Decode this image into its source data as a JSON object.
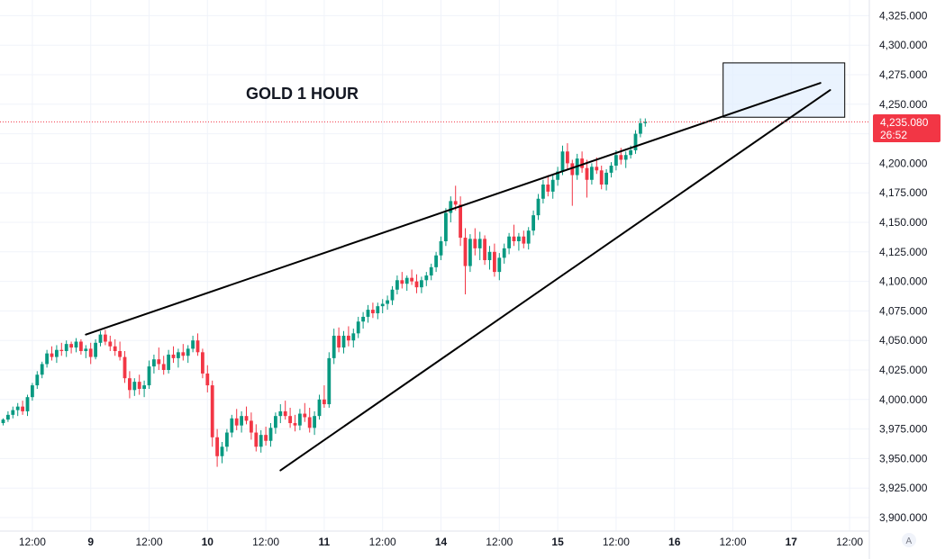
{
  "chart_data": {
    "type": "candlestick",
    "title": "GOLD 1 HOUR",
    "ylim": [
      3890,
      4335
    ],
    "y_ticks": [
      3900,
      3925,
      3950,
      3975,
      4000,
      4025,
      4050,
      4075,
      4100,
      4125,
      4150,
      4175,
      4200,
      4225,
      4250,
      4275,
      4300,
      4325
    ],
    "y_tick_labels": [
      "3,900.000",
      "3,925.000",
      "3,950.000",
      "3,975.000",
      "4,000.000",
      "4,025.000",
      "4,050.000",
      "4,075.000",
      "4,100.000",
      "4,125.000",
      "4,150.000",
      "4,175.000",
      "4,200.000",
      "4,225.000",
      "4,250.000",
      "4,275.000",
      "4,300.000",
      "4,325.000"
    ],
    "x_ticks": [
      {
        "t": 6,
        "label": "12:00",
        "day": false
      },
      {
        "t": 18,
        "label": "9",
        "day": true
      },
      {
        "t": 30,
        "label": "12:00",
        "day": false
      },
      {
        "t": 42,
        "label": "10",
        "day": true
      },
      {
        "t": 54,
        "label": "12:00",
        "day": false
      },
      {
        "t": 66,
        "label": "11",
        "day": true
      },
      {
        "t": 78,
        "label": "12:00",
        "day": false
      },
      {
        "t": 90,
        "label": "14",
        "day": true
      },
      {
        "t": 102,
        "label": "12:00",
        "day": false
      },
      {
        "t": 114,
        "label": "15",
        "day": true
      },
      {
        "t": 126,
        "label": "12:00",
        "day": false
      },
      {
        "t": 138,
        "label": "16",
        "day": true
      },
      {
        "t": 150,
        "label": "12:00",
        "day": false
      },
      {
        "t": 162,
        "label": "17",
        "day": true
      },
      {
        "t": 174,
        "label": "12:00",
        "day": false
      }
    ],
    "last_price": 4235.08,
    "last_price_label": "4,235.080",
    "countdown": "26:52",
    "colors": {
      "up": "#089981",
      "down": "#f23645",
      "grid": "#f0f3fa",
      "trendline": "#000000",
      "box_fill": "#e3effd",
      "box_stroke": "#000000",
      "price_tag": "#f23645"
    },
    "trendlines": [
      {
        "name": "upper-wedge-line",
        "t1": 17,
        "p1": 4055,
        "t2": 168,
        "p2": 4268
      },
      {
        "name": "lower-wedge-line",
        "t1": 57,
        "p1": 3940,
        "t2": 170,
        "p2": 4262
      }
    ],
    "target_box": {
      "t1": 148,
      "p1": 4285,
      "t2": 173,
      "p2": 4239
    },
    "candles": [
      [
        3980,
        3984,
        3978,
        3983
      ],
      [
        3983,
        3990,
        3981,
        3987
      ],
      [
        3987,
        3994,
        3984,
        3991
      ],
      [
        3991,
        3997,
        3986,
        3994
      ],
      [
        3994,
        3999,
        3987,
        3990
      ],
      [
        3990,
        4004,
        3986,
        4002
      ],
      [
        4002,
        4014,
        3999,
        4012
      ],
      [
        4012,
        4024,
        4009,
        4021
      ],
      [
        4021,
        4032,
        4018,
        4030
      ],
      [
        4030,
        4042,
        4027,
        4039
      ],
      [
        4039,
        4045,
        4033,
        4036
      ],
      [
        4036,
        4046,
        4031,
        4042
      ],
      [
        4042,
        4048,
        4037,
        4041
      ],
      [
        4041,
        4050,
        4036,
        4047
      ],
      [
        4047,
        4049,
        4039,
        4044
      ],
      [
        4044,
        4052,
        4040,
        4049
      ],
      [
        4049,
        4051,
        4038,
        4041
      ],
      [
        4041,
        4046,
        4035,
        4043
      ],
      [
        4043,
        4048,
        4030,
        4036
      ],
      [
        4036,
        4051,
        4034,
        4048
      ],
      [
        4048,
        4058,
        4045,
        4055
      ],
      [
        4055,
        4059,
        4046,
        4049
      ],
      [
        4049,
        4054,
        4041,
        4045
      ],
      [
        4045,
        4051,
        4037,
        4041
      ],
      [
        4041,
        4049,
        4033,
        4036
      ],
      [
        4036,
        4041,
        4014,
        4018
      ],
      [
        4018,
        4024,
        4001,
        4008
      ],
      [
        4008,
        4018,
        4003,
        4015
      ],
      [
        4015,
        4021,
        4004,
        4009
      ],
      [
        4009,
        4016,
        4002,
        4012
      ],
      [
        4012,
        4033,
        4009,
        4028
      ],
      [
        4028,
        4038,
        4022,
        4034
      ],
      [
        4034,
        4044,
        4025,
        4030
      ],
      [
        4030,
        4037,
        4021,
        4025
      ],
      [
        4025,
        4042,
        4022,
        4038
      ],
      [
        4038,
        4045,
        4031,
        4035
      ],
      [
        4035,
        4043,
        4027,
        4040
      ],
      [
        4040,
        4047,
        4033,
        4037
      ],
      [
        4037,
        4046,
        4031,
        4043
      ],
      [
        4043,
        4054,
        4040,
        4050
      ],
      [
        4050,
        4056,
        4037,
        4040
      ],
      [
        4040,
        4043,
        4018,
        4022
      ],
      [
        4022,
        4029,
        4006,
        4012
      ],
      [
        4012,
        4016,
        3960,
        3968
      ],
      [
        3968,
        3975,
        3943,
        3952
      ],
      [
        3952,
        3964,
        3946,
        3960
      ],
      [
        3960,
        3975,
        3956,
        3972
      ],
      [
        3972,
        3987,
        3968,
        3984
      ],
      [
        3984,
        3992,
        3974,
        3978
      ],
      [
        3978,
        3990,
        3972,
        3986
      ],
      [
        3986,
        3994,
        3979,
        3982
      ],
      [
        3982,
        3989,
        3966,
        3972
      ],
      [
        3972,
        3979,
        3956,
        3960
      ],
      [
        3960,
        3974,
        3955,
        3970
      ],
      [
        3970,
        3977,
        3961,
        3965
      ],
      [
        3965,
        3980,
        3960,
        3976
      ],
      [
        3976,
        3989,
        3971,
        3986
      ],
      [
        3986,
        3996,
        3980,
        3990
      ],
      [
        3990,
        3999,
        3983,
        3986
      ],
      [
        3986,
        3993,
        3976,
        3980
      ],
      [
        3980,
        3987,
        3973,
        3978
      ],
      [
        3978,
        3992,
        3974,
        3988
      ],
      [
        3988,
        3997,
        3981,
        3985
      ],
      [
        3985,
        3993,
        3972,
        3976
      ],
      [
        3976,
        3990,
        3970,
        3986
      ],
      [
        3986,
        4004,
        3983,
        4000
      ],
      [
        4000,
        4012,
        3993,
        3996
      ],
      [
        3996,
        4040,
        3993,
        4035
      ],
      [
        4035,
        4060,
        4030,
        4054
      ],
      [
        4054,
        4061,
        4040,
        4044
      ],
      [
        4044,
        4058,
        4039,
        4054
      ],
      [
        4054,
        4062,
        4045,
        4050
      ],
      [
        4050,
        4060,
        4044,
        4056
      ],
      [
        4056,
        4070,
        4052,
        4066
      ],
      [
        4066,
        4074,
        4060,
        4070
      ],
      [
        4070,
        4080,
        4065,
        4076
      ],
      [
        4076,
        4082,
        4069,
        4073
      ],
      [
        4073,
        4082,
        4068,
        4079
      ],
      [
        4079,
        4085,
        4073,
        4081
      ],
      [
        4081,
        4088,
        4076,
        4084
      ],
      [
        4084,
        4096,
        4080,
        4093
      ],
      [
        4093,
        4105,
        4089,
        4101
      ],
      [
        4101,
        4108,
        4094,
        4098
      ],
      [
        4098,
        4105,
        4092,
        4103
      ],
      [
        4103,
        4110,
        4097,
        4100
      ],
      [
        4100,
        4106,
        4090,
        4095
      ],
      [
        4095,
        4104,
        4090,
        4101
      ],
      [
        4101,
        4108,
        4096,
        4105
      ],
      [
        4105,
        4115,
        4101,
        4112
      ],
      [
        4112,
        4125,
        4108,
        4122
      ],
      [
        4122,
        4138,
        4118,
        4134
      ],
      [
        4134,
        4162,
        4130,
        4158
      ],
      [
        4158,
        4172,
        4150,
        4168
      ],
      [
        4168,
        4181,
        4160,
        4165
      ],
      [
        4165,
        4172,
        4130,
        4137
      ],
      [
        4137,
        4145,
        4089,
        4113
      ],
      [
        4113,
        4140,
        4108,
        4136
      ],
      [
        4136,
        4145,
        4122,
        4128
      ],
      [
        4128,
        4142,
        4118,
        4136
      ],
      [
        4136,
        4139,
        4114,
        4118
      ],
      [
        4118,
        4130,
        4110,
        4125
      ],
      [
        4125,
        4132,
        4104,
        4108
      ],
      [
        4108,
        4124,
        4101,
        4120
      ],
      [
        4120,
        4132,
        4115,
        4128
      ],
      [
        4128,
        4141,
        4123,
        4138
      ],
      [
        4138,
        4148,
        4130,
        4134
      ],
      [
        4134,
        4141,
        4126,
        4138
      ],
      [
        4138,
        4143,
        4128,
        4132
      ],
      [
        4132,
        4146,
        4127,
        4143
      ],
      [
        4143,
        4160,
        4139,
        4156
      ],
      [
        4156,
        4174,
        4152,
        4170
      ],
      [
        4170,
        4186,
        4166,
        4182
      ],
      [
        4182,
        4190,
        4172,
        4176
      ],
      [
        4176,
        4190,
        4170,
        4186
      ],
      [
        4186,
        4197,
        4181,
        4193
      ],
      [
        4193,
        4215,
        4190,
        4210
      ],
      [
        4210,
        4217,
        4195,
        4200
      ],
      [
        4200,
        4203,
        4164,
        4190
      ],
      [
        4190,
        4208,
        4186,
        4204
      ],
      [
        4204,
        4210,
        4192,
        4196
      ],
      [
        4196,
        4203,
        4171,
        4186
      ],
      [
        4186,
        4200,
        4182,
        4197
      ],
      [
        4197,
        4205,
        4191,
        4194
      ],
      [
        4194,
        4198,
        4178,
        4182
      ],
      [
        4182,
        4195,
        4177,
        4192
      ],
      [
        4192,
        4201,
        4188,
        4198
      ],
      [
        4198,
        4211,
        4194,
        4207
      ],
      [
        4207,
        4213,
        4199,
        4203
      ],
      [
        4203,
        4210,
        4196,
        4207
      ],
      [
        4207,
        4215,
        4204,
        4211
      ],
      [
        4211,
        4228,
        4208,
        4225
      ],
      [
        4225,
        4238,
        4222,
        4234
      ],
      [
        4234,
        4238,
        4231,
        4235
      ]
    ]
  }
}
